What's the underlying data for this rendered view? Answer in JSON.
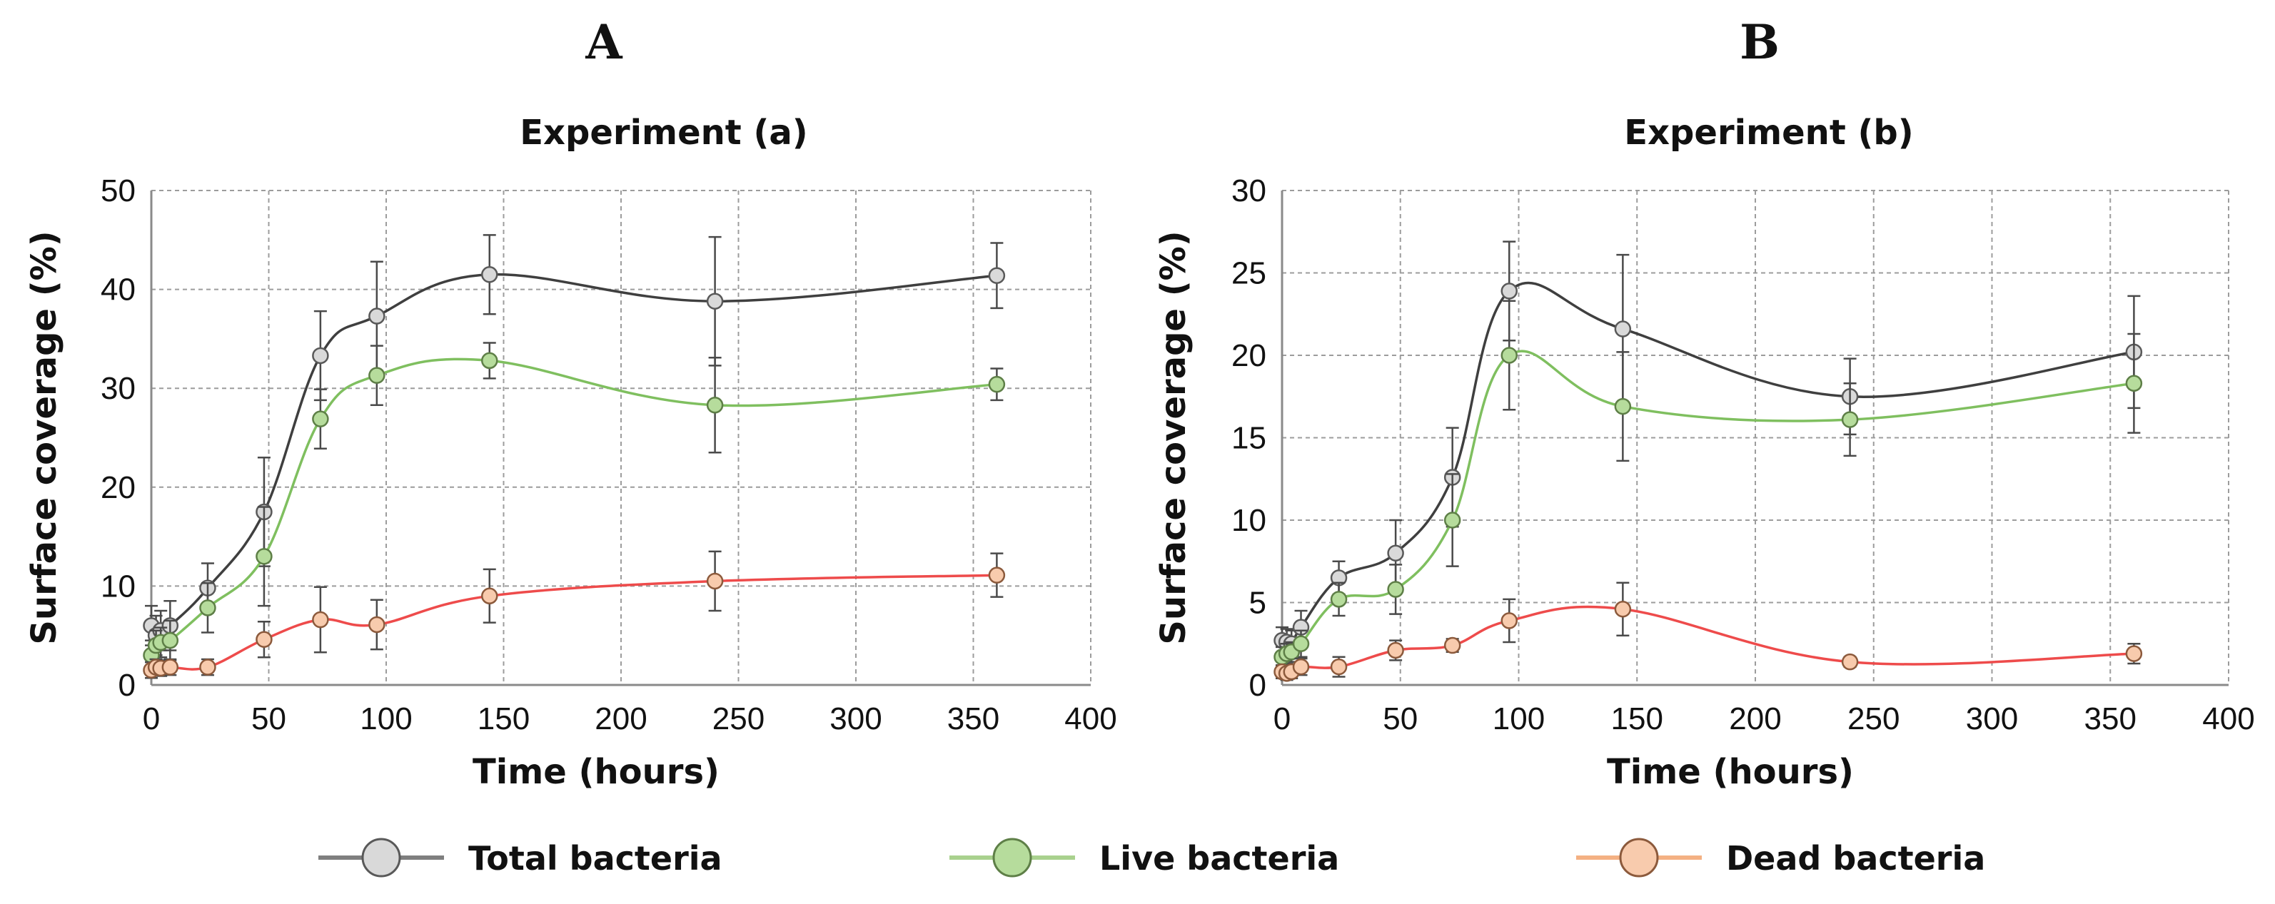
{
  "panels": [
    {
      "letter": "A"
    },
    {
      "letter": "B"
    }
  ],
  "legend": {
    "items": [
      {
        "label": "Total bacteria",
        "line_color": "#7f7f7f",
        "fill": "#d9d9d9",
        "edge": "#595959"
      },
      {
        "label": "Live bacteria",
        "line_color": "#a9d18e",
        "fill": "#b6dc9c",
        "edge": "#5e7f47"
      },
      {
        "label": "Dead bacteria",
        "line_color": "#f4b183",
        "fill": "#f8cbad",
        "edge": "#8c5a3c"
      }
    ]
  },
  "chart_data": [
    {
      "type": "line",
      "title": "Experiment (a)",
      "xlabel": "Time (hours)",
      "ylabel": "Surface coverage (%)",
      "xlim": [
        0,
        400
      ],
      "ylim": [
        0,
        50
      ],
      "xticks": [
        0,
        50,
        100,
        150,
        200,
        250,
        300,
        350,
        400
      ],
      "yticks": [
        0,
        10,
        20,
        30,
        40,
        50
      ],
      "grid": true,
      "series": [
        {
          "name": "Total bacteria",
          "color": "#3f3f3f",
          "marker_fill": "#d9d9d9",
          "marker_edge": "#595959",
          "x": [
            0,
            2,
            4,
            8,
            24,
            48,
            72,
            96,
            144,
            240,
            360
          ],
          "y": [
            6,
            5,
            5.5,
            6,
            9.8,
            17.5,
            33.3,
            37.3,
            41.5,
            38.8,
            41.4
          ],
          "err": [
            2,
            2,
            2,
            2.5,
            2.5,
            5.5,
            4.5,
            5.5,
            4,
            6.5,
            3.3
          ]
        },
        {
          "name": "Live bacteria",
          "color": "#7fbf5f",
          "marker_fill": "#b6dc9c",
          "marker_edge": "#5e7f47",
          "x": [
            0,
            2,
            4,
            8,
            24,
            48,
            72,
            96,
            144,
            240,
            360
          ],
          "y": [
            3,
            4,
            4.3,
            4.5,
            7.8,
            13,
            26.9,
            31.3,
            32.8,
            28.3,
            30.4
          ],
          "err": [
            1.5,
            1.5,
            1.5,
            2,
            2.5,
            5,
            3,
            3,
            1.8,
            4.8,
            1.6
          ]
        },
        {
          "name": "Dead bacteria",
          "color": "#ee4b4b",
          "marker_fill": "#f8cbad",
          "marker_edge": "#8c5a3c",
          "x": [
            0,
            2,
            4,
            8,
            24,
            48,
            72,
            96,
            144,
            240,
            360
          ],
          "y": [
            1.5,
            1.8,
            1.7,
            1.8,
            1.8,
            4.6,
            6.6,
            6.1,
            9,
            10.5,
            11.1
          ],
          "err": [
            0.8,
            0.8,
            0.8,
            0.8,
            0.8,
            1.8,
            3.3,
            2.5,
            2.7,
            3,
            2.2
          ]
        }
      ]
    },
    {
      "type": "line",
      "title": "Experiment (b)",
      "xlabel": "Time (hours)",
      "ylabel": "Surface coverage (%)",
      "xlim": [
        0,
        400
      ],
      "ylim": [
        0,
        30
      ],
      "xticks": [
        0,
        50,
        100,
        150,
        200,
        250,
        300,
        350,
        400
      ],
      "yticks": [
        0,
        5,
        10,
        15,
        20,
        25,
        30
      ],
      "grid": true,
      "series": [
        {
          "name": "Total bacteria",
          "color": "#3f3f3f",
          "marker_fill": "#d9d9d9",
          "marker_edge": "#595959",
          "x": [
            0,
            2,
            4,
            8,
            24,
            48,
            72,
            96,
            144,
            240,
            360
          ],
          "y": [
            2.7,
            2.6,
            2.5,
            3.5,
            6.5,
            8,
            12.6,
            23.9,
            21.6,
            17.5,
            20.2
          ],
          "err": [
            0.8,
            0.8,
            0.8,
            1,
            1,
            2,
            3,
            3,
            4.5,
            2.3,
            3.4
          ]
        },
        {
          "name": "Live bacteria",
          "color": "#7fbf5f",
          "marker_fill": "#b6dc9c",
          "marker_edge": "#5e7f47",
          "x": [
            0,
            2,
            4,
            8,
            24,
            48,
            72,
            96,
            144,
            240,
            360
          ],
          "y": [
            1.7,
            1.9,
            2,
            2.5,
            5.2,
            5.8,
            10,
            20,
            16.9,
            16.1,
            18.3
          ],
          "err": [
            0.6,
            0.6,
            0.6,
            0.8,
            1,
            1.5,
            2.8,
            3.3,
            3.3,
            2.2,
            3
          ]
        },
        {
          "name": "Dead bacteria",
          "color": "#ee4b4b",
          "marker_fill": "#f8cbad",
          "marker_edge": "#8c5a3c",
          "x": [
            0,
            2,
            4,
            8,
            24,
            48,
            72,
            96,
            144,
            240,
            360
          ],
          "y": [
            0.8,
            0.7,
            0.8,
            1.1,
            1.1,
            2.1,
            2.4,
            3.9,
            4.6,
            1.4,
            1.9
          ],
          "err": [
            0.4,
            0.4,
            0.4,
            0.5,
            0.6,
            0.6,
            0.4,
            1.3,
            1.6,
            0.3,
            0.6
          ]
        }
      ]
    }
  ]
}
